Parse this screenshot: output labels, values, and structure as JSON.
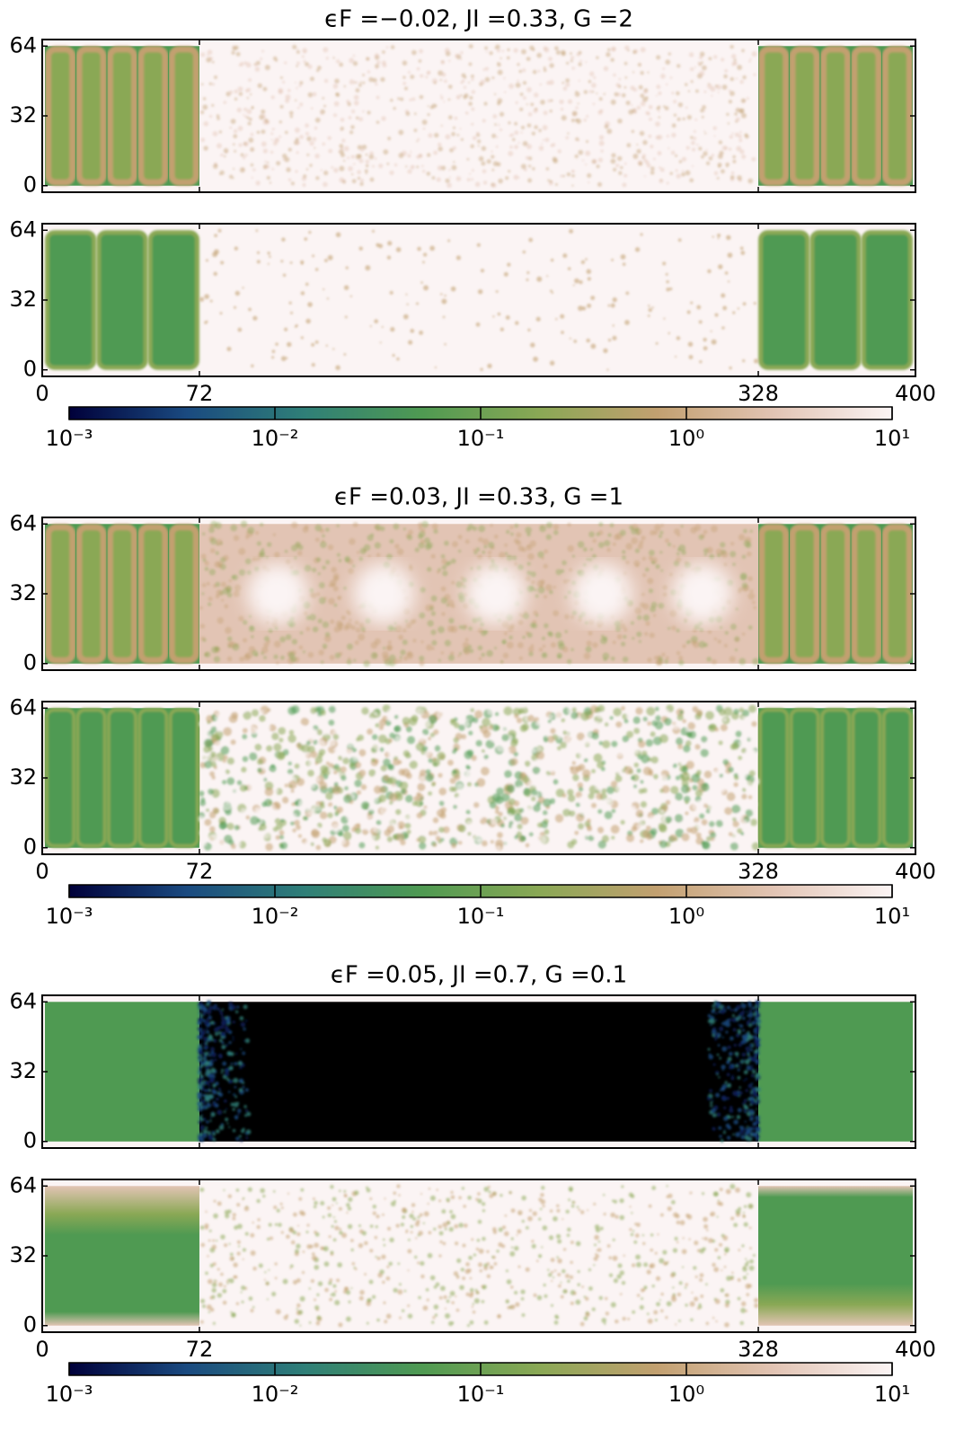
{
  "chart_data": [
    {
      "type": "heatmap",
      "title": "ϵF =−0.02, JI =0.33, G =2",
      "xlim": [
        0,
        400
      ],
      "xticks": [
        0,
        72,
        328,
        400
      ],
      "ylim": [
        -3,
        67
      ],
      "yticks": [
        0,
        32,
        64
      ],
      "colorbar": {
        "scale": "log",
        "lim": [
          0.001,
          10
        ],
        "ticks": [
          {
            "value": 0.001,
            "label": "10⁻³"
          },
          {
            "value": 0.01,
            "label": "10⁻²"
          },
          {
            "value": 0.1,
            "label": "10⁻¹"
          },
          {
            "value": 1,
            "label": "10⁰"
          },
          {
            "value": 10,
            "label": "10¹"
          }
        ],
        "colormap": [
          "#00003a",
          "#1a4a80",
          "#2f7f78",
          "#4f9a52",
          "#8aa855",
          "#c2a070",
          "#e2c4b4",
          "#fbf4f4"
        ]
      }
    },
    {
      "type": "heatmap",
      "title": "ϵF =0.03, JI =0.33, G =1",
      "xlim": [
        0,
        400
      ],
      "xticks": [
        0,
        72,
        328,
        400
      ],
      "ylim": [
        -3,
        67
      ],
      "yticks": [
        0,
        32,
        64
      ],
      "colorbar": {
        "scale": "log",
        "lim": [
          0.001,
          10
        ],
        "ticks": [
          {
            "value": 0.001,
            "label": "10⁻³"
          },
          {
            "value": 0.01,
            "label": "10⁻²"
          },
          {
            "value": 0.1,
            "label": "10⁻¹"
          },
          {
            "value": 1,
            "label": "10⁰"
          },
          {
            "value": 10,
            "label": "10¹"
          }
        ],
        "colormap": [
          "#00003a",
          "#1a4a80",
          "#2f7f78",
          "#4f9a52",
          "#8aa855",
          "#c2a070",
          "#e2c4b4",
          "#fbf4f4"
        ]
      }
    },
    {
      "type": "heatmap",
      "title": "ϵF =0.05, JI =0.7, G =0.1",
      "xlim": [
        0,
        400
      ],
      "xticks": [
        0,
        72,
        328,
        400
      ],
      "ylim": [
        -3,
        67
      ],
      "yticks": [
        0,
        32,
        64
      ],
      "colorbar": {
        "scale": "log",
        "lim": [
          0.001,
          10
        ],
        "ticks": [
          {
            "value": 0.001,
            "label": "10⁻³"
          },
          {
            "value": 0.01,
            "label": "10⁻²"
          },
          {
            "value": 0.1,
            "label": "10⁻¹"
          },
          {
            "value": 1,
            "label": "10⁰"
          },
          {
            "value": 10,
            "label": "10¹"
          }
        ],
        "colormap": [
          "#00003a",
          "#1a4a80",
          "#2f7f78",
          "#4f9a52",
          "#8aa855",
          "#c2a070",
          "#e2c4b4",
          "#fbf4f4"
        ]
      }
    }
  ]
}
